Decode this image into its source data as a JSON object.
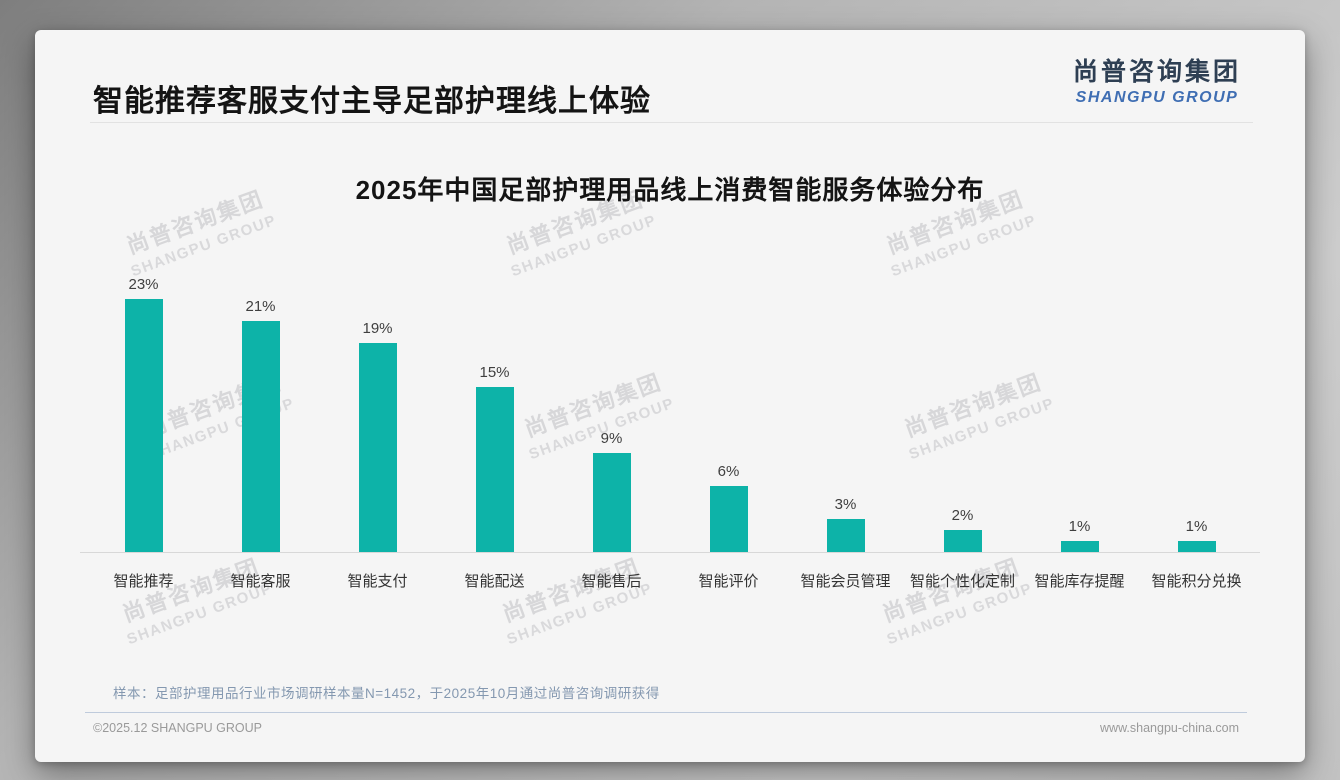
{
  "header": {
    "title": "智能推荐客服支付主导足部护理线上体验",
    "logo_cn": "尚普咨询集团",
    "logo_en": "SHANGPU GROUP"
  },
  "chart_data": {
    "type": "bar",
    "title": "2025年中国足部护理用品线上消费智能服务体验分布",
    "categories": [
      "智能推荐",
      "智能客服",
      "智能支付",
      "智能配送",
      "智能售后",
      "智能评价",
      "智能会员管理",
      "智能个性化定制",
      "智能库存提醒",
      "智能积分兑换"
    ],
    "values": [
      23,
      21,
      19,
      15,
      9,
      6,
      3,
      2,
      1,
      1
    ],
    "value_labels": [
      "23%",
      "21%",
      "19%",
      "15%",
      "9%",
      "6%",
      "3%",
      "2%",
      "1%",
      "1%"
    ],
    "unit": "%",
    "bar_color": "#0db3a8",
    "ylim": [
      0,
      25
    ],
    "xlabel": "",
    "ylabel": "",
    "grid": false,
    "legend": null
  },
  "watermark": {
    "line1": "尚普咨询集团",
    "line2": "SHANGPU GROUP"
  },
  "footnote": "样本：足部护理用品行业市场调研样本量N=1452，于2025年10月通过尚普咨询调研获得",
  "footer": {
    "left": "©2025.12 SHANGPU GROUP",
    "right": "www.shangpu-china.com"
  }
}
